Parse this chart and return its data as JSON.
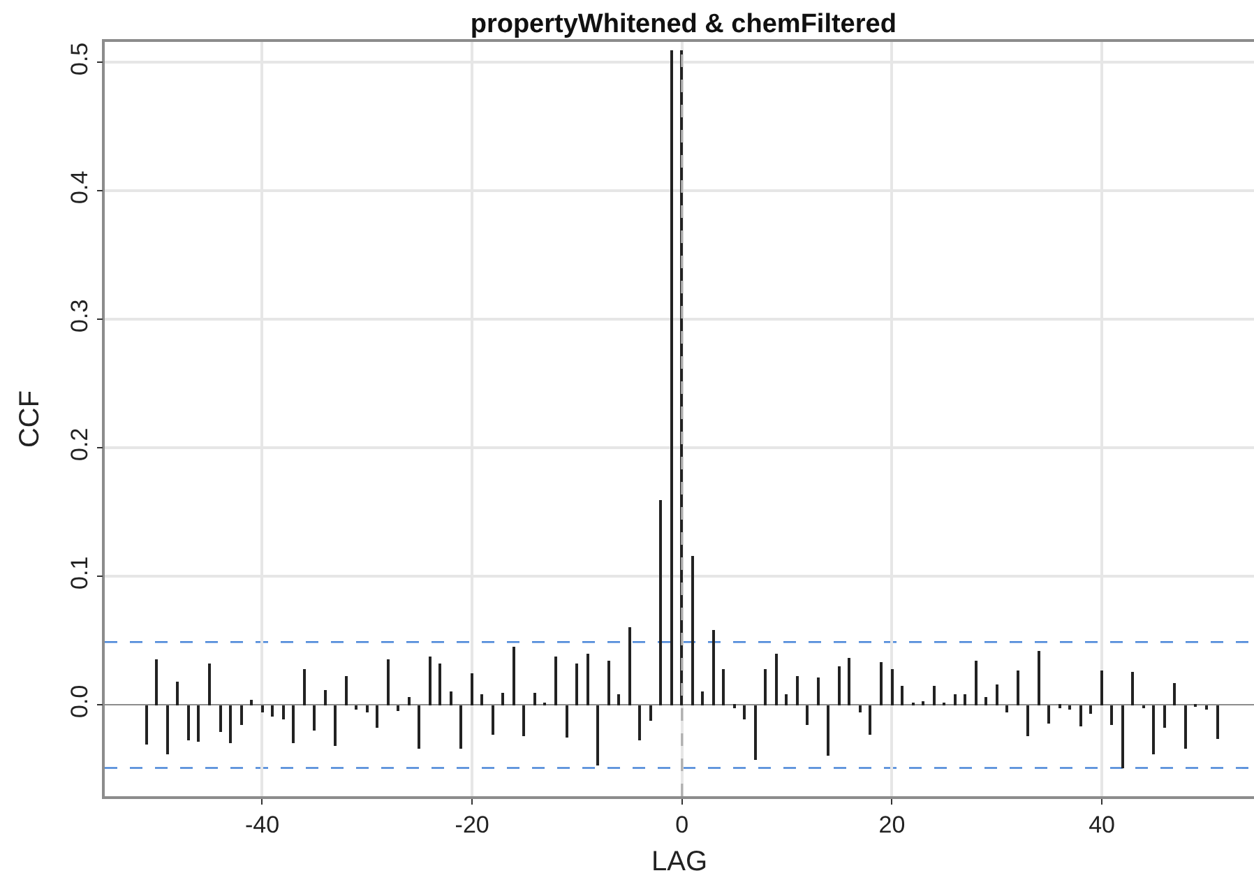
{
  "chart_data": {
    "type": "bar",
    "title": "propertyWhitened & chemFiltered",
    "xlabel": "LAG",
    "ylabel": "CCF",
    "x": [
      -51,
      -50,
      -49,
      -48,
      -47,
      -46,
      -45,
      -44,
      -43,
      -42,
      -41,
      -40,
      -39,
      -38,
      -37,
      -36,
      -35,
      -34,
      -33,
      -32,
      -31,
      -30,
      -29,
      -28,
      -27,
      -26,
      -25,
      -24,
      -23,
      -22,
      -21,
      -20,
      -19,
      -18,
      -17,
      -16,
      -15,
      -14,
      -13,
      -12,
      -11,
      -10,
      -9,
      -8,
      -7,
      -6,
      -5,
      -4,
      -3,
      -2,
      -1,
      0,
      1,
      2,
      3,
      4,
      5,
      6,
      7,
      8,
      9,
      10,
      11,
      12,
      13,
      14,
      15,
      16,
      17,
      18,
      19,
      20,
      21,
      22,
      23,
      24,
      25,
      26,
      27,
      28,
      29,
      30,
      31,
      32,
      33,
      34,
      35,
      36,
      37,
      38,
      39,
      40,
      41,
      42,
      43,
      44,
      45,
      46,
      47,
      48,
      49,
      50,
      51
    ],
    "values": [
      -0.031,
      0.036,
      -0.038,
      0.018,
      -0.028,
      -0.029,
      0.032,
      -0.021,
      -0.03,
      -0.016,
      0.004,
      -0.006,
      -0.009,
      -0.011,
      -0.03,
      0.028,
      -0.02,
      0.012,
      -0.032,
      0.023,
      -0.004,
      -0.006,
      -0.018,
      0.036,
      -0.005,
      0.006,
      -0.034,
      0.038,
      0.032,
      0.011,
      -0.034,
      0.025,
      0.008,
      -0.023,
      0.009,
      0.045,
      -0.024,
      0.009,
      0.002,
      0.038,
      -0.025,
      0.032,
      0.04,
      -0.047,
      0.034,
      0.008,
      0.06,
      -0.027,
      -0.012,
      0.159,
      0.51,
      0.51,
      0.116,
      0.011,
      0.058,
      0.028,
      -0.002,
      -0.011,
      -0.043,
      0.028,
      0.04,
      0.008,
      0.023,
      -0.016,
      0.021,
      -0.039,
      0.03,
      0.037,
      -0.006,
      -0.023,
      0.033,
      0.028,
      0.015,
      0.002,
      0.003,
      0.015,
      0.002,
      0.008,
      0.008,
      0.034,
      0.006,
      0.016,
      -0.006,
      0.027,
      -0.024,
      0.042,
      -0.014,
      -0.002,
      -0.004,
      -0.017,
      -0.007,
      0.027,
      -0.016,
      -0.049,
      0.026,
      -0.003,
      -0.038,
      -0.018,
      0.017,
      -0.034,
      -0.001,
      -0.004,
      -0.026
    ],
    "color": "#222222",
    "xlim": [
      -55,
      54.5
    ],
    "xticks": [
      -40,
      -20,
      0,
      20,
      40
    ],
    "ylim": [
      -0.071,
      0.516
    ],
    "yticks": [
      {
        "value": 0,
        "label": "0.0"
      },
      {
        "value": 0.1,
        "label": "0.1"
      },
      {
        "value": 0.2,
        "label": "0.2"
      },
      {
        "value": 0.3,
        "label": "0.3"
      },
      {
        "value": 0.4,
        "label": "0.4"
      },
      {
        "value": 0.5,
        "label": "0.5"
      }
    ],
    "grid": true,
    "ref_lines": [
      {
        "axis": "y",
        "value": 0.049,
        "color": "#4a86d8",
        "line_style": "dashed"
      },
      {
        "axis": "y",
        "value": -0.049,
        "color": "#4a86d8",
        "line_style": "dashed"
      },
      {
        "axis": "x",
        "value": 0,
        "color": "#b0b0b0",
        "line_style": "dashed"
      }
    ]
  }
}
